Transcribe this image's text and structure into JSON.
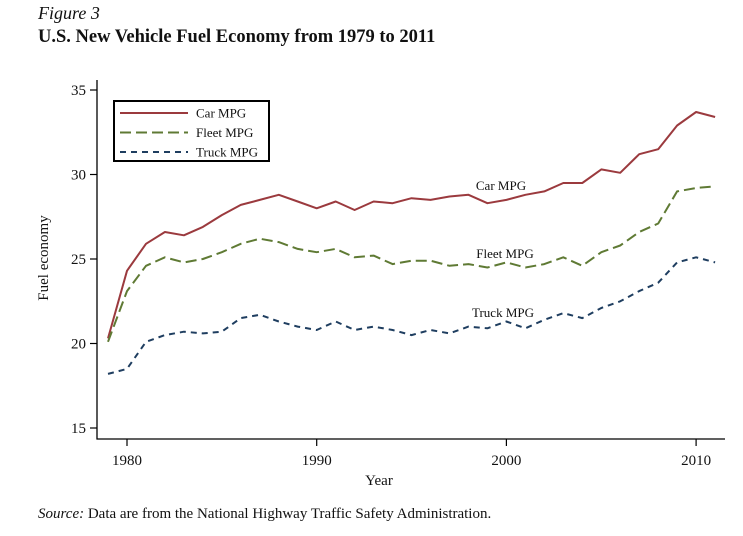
{
  "figure_label": "Figure 3",
  "title": "U.S. New Vehicle Fuel Economy from 1979 to 2011",
  "source_label": "Source:",
  "source_text": " Data are from the National Highway Traffic Safety Administration.",
  "chart_data": {
    "type": "line",
    "xlabel": "Year",
    "ylabel": "Fuel economy",
    "xlim": [
      1979,
      2011
    ],
    "ylim": [
      15,
      35
    ],
    "xticks": [
      1980,
      1990,
      2000,
      2010
    ],
    "yticks": [
      15,
      20,
      25,
      30,
      35
    ],
    "grid": false,
    "legend_placement": "top-left",
    "x": [
      1979,
      1980,
      1981,
      1982,
      1983,
      1984,
      1985,
      1986,
      1987,
      1988,
      1989,
      1990,
      1991,
      1992,
      1993,
      1994,
      1995,
      1996,
      1997,
      1998,
      1999,
      2000,
      2001,
      2002,
      2003,
      2004,
      2005,
      2006,
      2007,
      2008,
      2009,
      2010,
      2011
    ],
    "series": [
      {
        "name": "Car MPG",
        "color": "#9b3a3e",
        "dash": "solid",
        "annotation": "Car MPG",
        "values": [
          20.3,
          24.3,
          25.9,
          26.6,
          26.4,
          26.9,
          27.6,
          28.2,
          28.5,
          28.8,
          28.4,
          28.0,
          28.4,
          27.9,
          28.4,
          28.3,
          28.6,
          28.5,
          28.7,
          28.8,
          28.3,
          28.5,
          28.8,
          29.0,
          29.5,
          29.5,
          30.3,
          30.1,
          31.2,
          31.5,
          32.9,
          33.7,
          33.4
        ]
      },
      {
        "name": "Fleet MPG",
        "color": "#5f7a34",
        "dash": "long",
        "annotation": "Fleet MPG",
        "values": [
          20.1,
          23.1,
          24.6,
          25.1,
          24.8,
          25.0,
          25.4,
          25.9,
          26.2,
          26.0,
          25.6,
          25.4,
          25.6,
          25.1,
          25.2,
          24.7,
          24.9,
          24.9,
          24.6,
          24.7,
          24.5,
          24.8,
          24.5,
          24.7,
          25.1,
          24.6,
          25.4,
          25.8,
          26.6,
          27.1,
          29.0,
          29.2,
          29.3
        ]
      },
      {
        "name": "Truck MPG",
        "color": "#1f3e60",
        "dash": "short",
        "annotation": "Truck MPG",
        "values": [
          18.2,
          18.5,
          20.1,
          20.5,
          20.7,
          20.6,
          20.7,
          21.5,
          21.7,
          21.3,
          21.0,
          20.8,
          21.3,
          20.8,
          21.0,
          20.8,
          20.5,
          20.8,
          20.6,
          21.0,
          20.9,
          21.3,
          20.9,
          21.4,
          21.8,
          21.5,
          22.1,
          22.5,
          23.1,
          23.6,
          24.8,
          25.1,
          24.8
        ]
      }
    ]
  }
}
